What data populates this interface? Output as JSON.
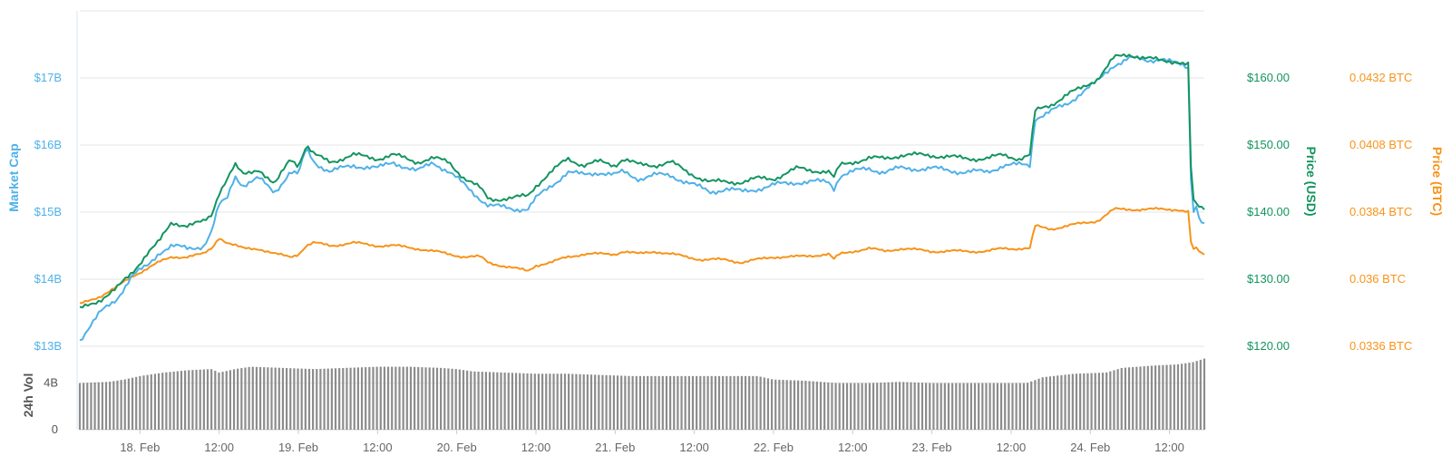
{
  "chart_data": {
    "type": "line",
    "x_tick_labels": [
      "18. Feb",
      "12:00",
      "19. Feb",
      "12:00",
      "20. Feb",
      "12:00",
      "21. Feb",
      "12:00",
      "22. Feb",
      "12:00",
      "23. Feb",
      "12:00",
      "24. Feb",
      "12:00"
    ],
    "x_range_days": [
      17.62,
      24.72
    ],
    "axes": {
      "market_cap": {
        "title": "Market Cap",
        "ticks": [
          "$13B",
          "$14B",
          "$15B",
          "$16B",
          "$17B"
        ],
        "range": [
          13,
          18
        ],
        "color": "#4fb1e8"
      },
      "price_usd": {
        "title": "Price (USD)",
        "ticks": [
          "$120.00",
          "$130.00",
          "$140.00",
          "$150.00",
          "$160.00"
        ],
        "range": [
          120,
          160
        ],
        "color": "#13945f"
      },
      "price_btc": {
        "title": "Price (BTC)",
        "ticks": [
          "0.0336 BTC",
          "0.036 BTC",
          "0.0384 BTC",
          "0.0408 BTC",
          "0.0432 BTC"
        ],
        "range": [
          0.0336,
          0.0432
        ],
        "color": "#f7931a"
      },
      "volume": {
        "title": "24h Vol",
        "ticks": [
          "0",
          "4B"
        ],
        "range": [
          0,
          7
        ]
      }
    },
    "grid": true,
    "series": [
      {
        "name": "Market Cap",
        "axis": "market_cap",
        "color": "#4fb1e8",
        "points": [
          [
            17.62,
            13.1
          ],
          [
            17.75,
            13.5
          ],
          [
            17.85,
            13.7
          ],
          [
            17.95,
            14.05
          ],
          [
            18.05,
            14.2
          ],
          [
            18.12,
            14.4
          ],
          [
            18.2,
            14.5
          ],
          [
            18.3,
            14.45
          ],
          [
            18.4,
            14.5
          ],
          [
            18.45,
            14.7
          ],
          [
            18.5,
            15.1
          ],
          [
            18.55,
            15.2
          ],
          [
            18.6,
            15.55
          ],
          [
            18.65,
            15.4
          ],
          [
            18.75,
            15.5
          ],
          [
            18.85,
            15.3
          ],
          [
            18.95,
            15.6
          ],
          [
            19.0,
            15.55
          ],
          [
            19.05,
            15.95
          ],
          [
            19.1,
            15.75
          ],
          [
            19.2,
            15.6
          ],
          [
            19.35,
            15.7
          ],
          [
            19.5,
            15.65
          ],
          [
            19.6,
            15.75
          ],
          [
            19.75,
            15.6
          ],
          [
            19.85,
            15.75
          ],
          [
            19.95,
            15.6
          ],
          [
            20.05,
            15.4
          ],
          [
            20.15,
            15.2
          ],
          [
            20.2,
            15.1
          ],
          [
            20.35,
            15.05
          ],
          [
            20.45,
            15.05
          ],
          [
            20.5,
            15.2
          ],
          [
            20.6,
            15.4
          ],
          [
            20.7,
            15.6
          ],
          [
            20.8,
            15.55
          ],
          [
            20.9,
            15.6
          ],
          [
            21.0,
            15.55
          ],
          [
            21.05,
            15.6
          ],
          [
            21.15,
            15.5
          ],
          [
            21.25,
            15.55
          ],
          [
            21.35,
            15.55
          ],
          [
            21.45,
            15.45
          ],
          [
            21.55,
            15.35
          ],
          [
            21.6,
            15.3
          ],
          [
            21.7,
            15.35
          ],
          [
            21.8,
            15.3
          ],
          [
            21.9,
            15.35
          ],
          [
            22.0,
            15.4
          ],
          [
            22.15,
            15.45
          ],
          [
            22.35,
            15.45
          ],
          [
            22.38,
            15.35
          ],
          [
            22.42,
            15.55
          ],
          [
            22.5,
            15.6
          ],
          [
            22.6,
            15.65
          ],
          [
            22.7,
            15.6
          ],
          [
            22.8,
            15.65
          ],
          [
            23.0,
            15.65
          ],
          [
            23.2,
            15.6
          ],
          [
            23.35,
            15.6
          ],
          [
            23.45,
            15.7
          ],
          [
            23.55,
            15.7
          ],
          [
            23.62,
            15.7
          ],
          [
            23.65,
            16.4
          ],
          [
            23.75,
            16.5
          ],
          [
            23.85,
            16.6
          ],
          [
            23.95,
            16.8
          ],
          [
            24.05,
            16.95
          ],
          [
            24.15,
            17.2
          ],
          [
            24.25,
            17.3
          ],
          [
            24.35,
            17.25
          ],
          [
            24.45,
            17.3
          ],
          [
            24.55,
            17.2
          ],
          [
            24.62,
            17.15
          ],
          [
            24.64,
            15.0
          ],
          [
            24.67,
            15.1
          ],
          [
            24.7,
            14.85
          ]
        ]
      },
      {
        "name": "Price (USD)",
        "axis": "price_usd",
        "color": "#13945f",
        "points": [
          [
            17.62,
            125.5
          ],
          [
            17.75,
            127
          ],
          [
            17.85,
            128.5
          ],
          [
            17.95,
            131
          ],
          [
            18.05,
            134
          ],
          [
            18.12,
            135.5
          ],
          [
            18.2,
            138.5
          ],
          [
            18.3,
            138
          ],
          [
            18.4,
            138.5
          ],
          [
            18.45,
            139.5
          ],
          [
            18.5,
            143
          ],
          [
            18.55,
            145
          ],
          [
            18.6,
            147
          ],
          [
            18.65,
            145.5
          ],
          [
            18.75,
            146.5
          ],
          [
            18.85,
            144
          ],
          [
            18.95,
            148
          ],
          [
            19.0,
            147
          ],
          [
            19.05,
            150
          ],
          [
            19.1,
            148.5
          ],
          [
            19.2,
            147.5
          ],
          [
            19.35,
            148.5
          ],
          [
            19.5,
            148
          ],
          [
            19.6,
            148.5
          ],
          [
            19.75,
            147.5
          ],
          [
            19.85,
            148
          ],
          [
            19.95,
            147.5
          ],
          [
            20.05,
            145
          ],
          [
            20.15,
            143.5
          ],
          [
            20.2,
            142
          ],
          [
            20.35,
            142
          ],
          [
            20.45,
            142.5
          ],
          [
            20.5,
            144
          ],
          [
            20.6,
            146
          ],
          [
            20.7,
            148
          ],
          [
            20.8,
            147
          ],
          [
            20.9,
            147.5
          ],
          [
            21.0,
            147
          ],
          [
            21.05,
            148
          ],
          [
            21.15,
            147
          ],
          [
            21.25,
            147
          ],
          [
            21.35,
            147.5
          ],
          [
            21.45,
            146
          ],
          [
            21.55,
            145
          ],
          [
            21.6,
            144.5
          ],
          [
            21.7,
            144.5
          ],
          [
            21.8,
            144.5
          ],
          [
            21.9,
            145
          ],
          [
            22.0,
            145
          ],
          [
            22.15,
            146.5
          ],
          [
            22.35,
            146
          ],
          [
            22.38,
            145
          ],
          [
            22.42,
            147
          ],
          [
            22.5,
            147.5
          ],
          [
            22.6,
            148
          ],
          [
            22.7,
            148
          ],
          [
            22.8,
            148.5
          ],
          [
            23.0,
            148.5
          ],
          [
            23.2,
            148
          ],
          [
            23.35,
            148
          ],
          [
            23.45,
            148.5
          ],
          [
            23.55,
            148
          ],
          [
            23.62,
            148.5
          ],
          [
            23.65,
            155
          ],
          [
            23.75,
            156
          ],
          [
            23.85,
            157.5
          ],
          [
            23.95,
            158.5
          ],
          [
            24.05,
            160
          ],
          [
            24.15,
            163
          ],
          [
            24.25,
            163.5
          ],
          [
            24.35,
            163
          ],
          [
            24.45,
            162.5
          ],
          [
            24.55,
            162.5
          ],
          [
            24.62,
            162
          ],
          [
            24.64,
            142
          ],
          [
            24.67,
            141
          ],
          [
            24.7,
            140.5
          ]
        ]
      },
      {
        "name": "Price (BTC)",
        "axis": "price_btc",
        "color": "#f7931a",
        "points": [
          [
            17.62,
            0.0351
          ],
          [
            17.75,
            0.0354
          ],
          [
            17.85,
            0.0357
          ],
          [
            17.95,
            0.0361
          ],
          [
            18.05,
            0.0364
          ],
          [
            18.12,
            0.0366
          ],
          [
            18.2,
            0.0368
          ],
          [
            18.3,
            0.0368
          ],
          [
            18.4,
            0.0369
          ],
          [
            18.45,
            0.0371
          ],
          [
            18.5,
            0.0375
          ],
          [
            18.55,
            0.0373
          ],
          [
            18.6,
            0.0372
          ],
          [
            18.65,
            0.0371
          ],
          [
            18.75,
            0.0371
          ],
          [
            18.85,
            0.0369
          ],
          [
            18.95,
            0.0368
          ],
          [
            19.0,
            0.0369
          ],
          [
            19.05,
            0.0372
          ],
          [
            19.1,
            0.0373
          ],
          [
            19.2,
            0.0372
          ],
          [
            19.35,
            0.0373
          ],
          [
            19.5,
            0.0372
          ],
          [
            19.6,
            0.0372
          ],
          [
            19.75,
            0.0371
          ],
          [
            19.85,
            0.037
          ],
          [
            19.95,
            0.0369
          ],
          [
            20.05,
            0.0368
          ],
          [
            20.15,
            0.0368
          ],
          [
            20.2,
            0.0366
          ],
          [
            20.35,
            0.0364
          ],
          [
            20.45,
            0.0363
          ],
          [
            20.5,
            0.0365
          ],
          [
            20.6,
            0.0366
          ],
          [
            20.7,
            0.0368
          ],
          [
            20.8,
            0.0369
          ],
          [
            20.9,
            0.0369
          ],
          [
            21.0,
            0.0369
          ],
          [
            21.05,
            0.037
          ],
          [
            21.15,
            0.0369
          ],
          [
            21.25,
            0.037
          ],
          [
            21.35,
            0.0369
          ],
          [
            21.45,
            0.0368
          ],
          [
            21.55,
            0.0367
          ],
          [
            21.6,
            0.0367
          ],
          [
            21.7,
            0.0367
          ],
          [
            21.8,
            0.0366
          ],
          [
            21.9,
            0.0367
          ],
          [
            22.0,
            0.0368
          ],
          [
            22.15,
            0.0368
          ],
          [
            22.35,
            0.0369
          ],
          [
            22.38,
            0.0367
          ],
          [
            22.42,
            0.0369
          ],
          [
            22.5,
            0.037
          ],
          [
            22.6,
            0.0371
          ],
          [
            22.7,
            0.037
          ],
          [
            22.8,
            0.0371
          ],
          [
            23.0,
            0.037
          ],
          [
            23.2,
            0.037
          ],
          [
            23.35,
            0.037
          ],
          [
            23.45,
            0.0371
          ],
          [
            23.55,
            0.0371
          ],
          [
            23.62,
            0.0371
          ],
          [
            23.65,
            0.0379
          ],
          [
            23.75,
            0.0378
          ],
          [
            23.85,
            0.0379
          ],
          [
            23.95,
            0.038
          ],
          [
            24.05,
            0.0381
          ],
          [
            24.15,
            0.0385
          ],
          [
            24.25,
            0.0385
          ],
          [
            24.35,
            0.0385
          ],
          [
            24.45,
            0.0385
          ],
          [
            24.55,
            0.0385
          ],
          [
            24.62,
            0.0384
          ],
          [
            24.64,
            0.037
          ],
          [
            24.67,
            0.0371
          ],
          [
            24.7,
            0.0369
          ]
        ]
      },
      {
        "name": "24h Vol",
        "axis": "volume",
        "kind": "bar",
        "color": "#8c8c8c",
        "points": [
          [
            17.62,
            4.0
          ],
          [
            17.8,
            4.1
          ],
          [
            17.9,
            4.3
          ],
          [
            18.0,
            4.6
          ],
          [
            18.15,
            4.9
          ],
          [
            18.3,
            5.1
          ],
          [
            18.45,
            5.2
          ],
          [
            18.5,
            4.9
          ],
          [
            18.6,
            5.2
          ],
          [
            18.7,
            5.4
          ],
          [
            18.9,
            5.3
          ],
          [
            19.1,
            5.2
          ],
          [
            19.3,
            5.3
          ],
          [
            19.5,
            5.4
          ],
          [
            19.7,
            5.4
          ],
          [
            19.9,
            5.3
          ],
          [
            20.0,
            5.2
          ],
          [
            20.1,
            5.0
          ],
          [
            20.3,
            4.9
          ],
          [
            20.5,
            4.8
          ],
          [
            20.7,
            4.8
          ],
          [
            20.9,
            4.7
          ],
          [
            21.1,
            4.6
          ],
          [
            21.3,
            4.6
          ],
          [
            21.5,
            4.6
          ],
          [
            21.7,
            4.6
          ],
          [
            21.9,
            4.6
          ],
          [
            22.0,
            4.3
          ],
          [
            22.2,
            4.2
          ],
          [
            22.4,
            4.0
          ],
          [
            22.6,
            4.0
          ],
          [
            22.8,
            4.1
          ],
          [
            23.0,
            4.0
          ],
          [
            23.2,
            4.0
          ],
          [
            23.4,
            4.0
          ],
          [
            23.6,
            4.0
          ],
          [
            23.7,
            4.5
          ],
          [
            23.9,
            4.8
          ],
          [
            24.1,
            4.9
          ],
          [
            24.2,
            5.3
          ],
          [
            24.4,
            5.5
          ],
          [
            24.55,
            5.6
          ],
          [
            24.65,
            5.8
          ],
          [
            24.72,
            6.1
          ]
        ]
      }
    ]
  }
}
